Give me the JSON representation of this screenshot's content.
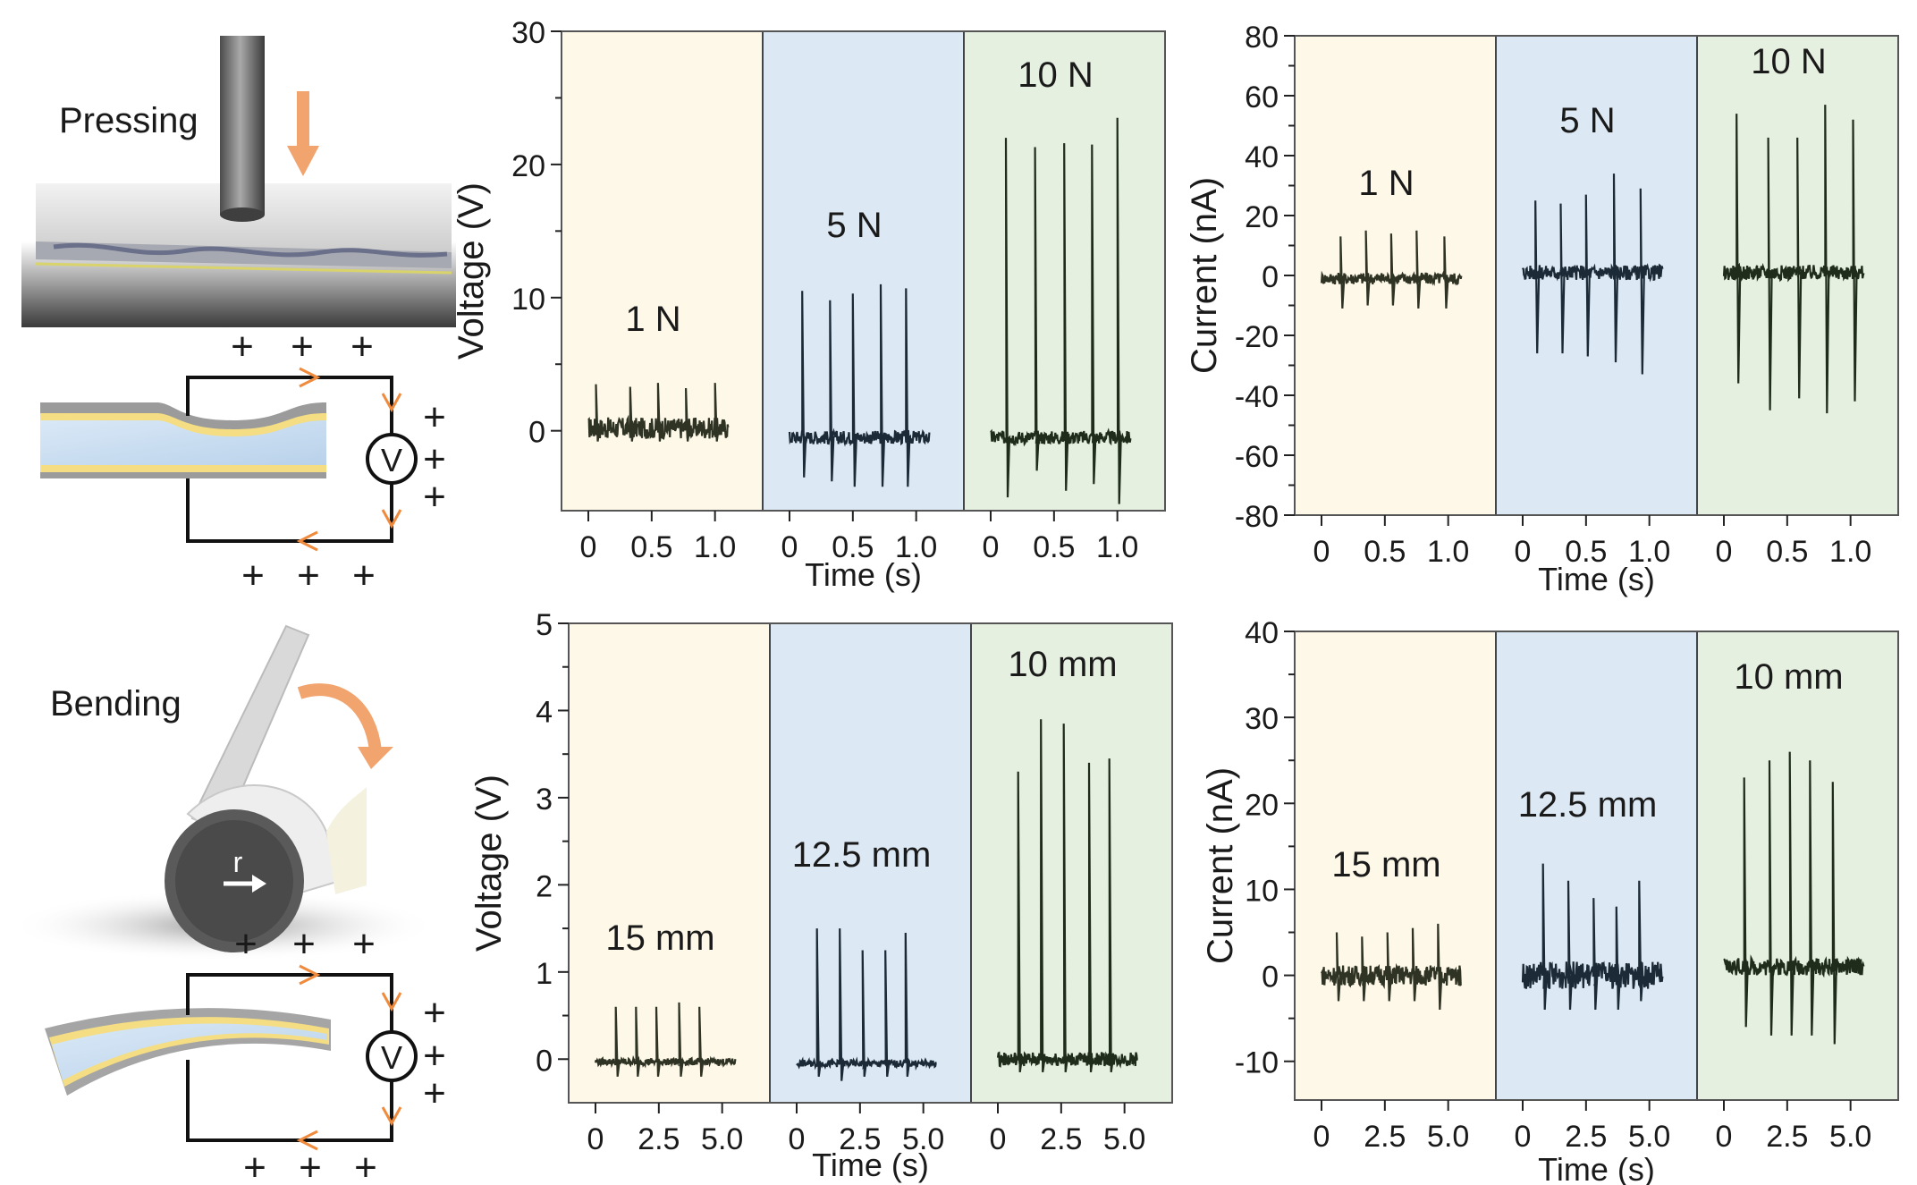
{
  "colors": {
    "panel_bg": [
      "#fdf8e8",
      "#dce8f3",
      "#e6f0e0"
    ],
    "trace": [
      "#2f3324",
      "#1b2a36",
      "#1f2c1c"
    ],
    "accent": "#f2a46f",
    "axis": "#222222"
  },
  "schematic": {
    "pressing_label": "Pressing",
    "bending_label": "Bending",
    "meter_label": "V",
    "radius_label": "r",
    "charge_symbol": "+"
  },
  "chart_data": [
    {
      "type": "line",
      "ylabel": "Voltage (V)",
      "xlabel": "Time (s)",
      "ylim": [
        -6,
        30
      ],
      "yticks": [
        0,
        10,
        20,
        30
      ],
      "xlim": [
        0,
        1.2
      ],
      "xticks": [
        0,
        0.5,
        1.0
      ],
      "xticklabels": [
        "0",
        "0.5",
        "1.0"
      ],
      "grid": false,
      "series": [
        {
          "name": "1 N",
          "baseline": 0.2,
          "noise": 0.8,
          "spikes": [
            [
              0.06,
              3.5,
              -0.8
            ],
            [
              0.33,
              3.3,
              -0.8
            ],
            [
              0.55,
              3.6,
              -0.8
            ],
            [
              0.77,
              3.2,
              -0.8
            ],
            [
              1.0,
              3.6,
              -0.8
            ]
          ]
        },
        {
          "name": "5 N",
          "baseline": -0.5,
          "noise": 0.5,
          "spikes": [
            [
              0.1,
              10.5,
              -3.5
            ],
            [
              0.32,
              9.8,
              -3.8
            ],
            [
              0.5,
              10.3,
              -4.2
            ],
            [
              0.72,
              11.0,
              -4.2
            ],
            [
              0.92,
              10.7,
              -4.2
            ]
          ]
        },
        {
          "name": "10 N",
          "baseline": -0.5,
          "noise": 0.5,
          "spikes": [
            [
              0.12,
              22.0,
              -5.0
            ],
            [
              0.35,
              21.3,
              -3.0
            ],
            [
              0.58,
              21.6,
              -4.5
            ],
            [
              0.8,
              21.5,
              -4.0
            ],
            [
              1.0,
              23.5,
              -5.5
            ]
          ]
        }
      ]
    },
    {
      "type": "line",
      "ylabel": "Current (nA)",
      "xlabel": "Time (s)",
      "ylim": [
        -80,
        80
      ],
      "yticks": [
        -80,
        -60,
        -40,
        -20,
        0,
        20,
        40,
        60,
        80
      ],
      "xlim": [
        0,
        1.2
      ],
      "xticks": [
        0,
        0.5,
        1.0
      ],
      "xticklabels": [
        "0",
        "0.5",
        "1.0"
      ],
      "grid": false,
      "series": [
        {
          "name": "1 N",
          "baseline": -1,
          "noise": 2,
          "spikes": [
            [
              0.15,
              13,
              -11
            ],
            [
              0.35,
              15,
              -10
            ],
            [
              0.55,
              14,
              -10
            ],
            [
              0.75,
              15,
              -11
            ],
            [
              0.97,
              13,
              -11
            ]
          ]
        },
        {
          "name": "5 N",
          "baseline": 1,
          "noise": 2.5,
          "spikes": [
            [
              0.1,
              25,
              -26
            ],
            [
              0.3,
              24,
              -26
            ],
            [
              0.5,
              27,
              -27
            ],
            [
              0.72,
              34,
              -29
            ],
            [
              0.93,
              29,
              -33
            ]
          ]
        },
        {
          "name": "10 N",
          "baseline": 1,
          "noise": 2.5,
          "spikes": [
            [
              0.1,
              54,
              -36
            ],
            [
              0.35,
              46,
              -45
            ],
            [
              0.58,
              46,
              -41
            ],
            [
              0.8,
              57,
              -46
            ],
            [
              1.02,
              52,
              -42
            ]
          ]
        }
      ]
    },
    {
      "type": "line",
      "ylabel": "Voltage (V)",
      "xlabel": "Time (s)",
      "ylim": [
        -0.5,
        5
      ],
      "yticks": [
        0,
        1,
        2,
        3,
        4,
        5
      ],
      "xlim": [
        0,
        6
      ],
      "xticks": [
        0,
        2.5,
        5
      ],
      "xticklabels": [
        "0",
        "2.5",
        "5.0"
      ],
      "grid": false,
      "series": [
        {
          "name": "15 mm",
          "baseline": -0.03,
          "noise": 0.04,
          "spikes": [
            [
              0.8,
              0.6,
              -0.2
            ],
            [
              1.6,
              0.6,
              -0.2
            ],
            [
              2.4,
              0.6,
              -0.2
            ],
            [
              3.3,
              0.65,
              -0.2
            ],
            [
              4.1,
              0.6,
              -0.2
            ]
          ]
        },
        {
          "name": "12.5 mm",
          "baseline": -0.05,
          "noise": 0.04,
          "spikes": [
            [
              0.8,
              1.5,
              -0.2
            ],
            [
              1.7,
              1.5,
              -0.25
            ],
            [
              2.6,
              1.25,
              -0.2
            ],
            [
              3.5,
              1.25,
              -0.2
            ],
            [
              4.3,
              1.45,
              -0.2
            ]
          ]
        },
        {
          "name": "10 mm",
          "baseline": 0.0,
          "noise": 0.08,
          "spikes": [
            [
              0.8,
              3.3,
              -0.15
            ],
            [
              1.7,
              3.9,
              -0.15
            ],
            [
              2.6,
              3.85,
              -0.15
            ],
            [
              3.6,
              3.4,
              -0.15
            ],
            [
              4.4,
              3.45,
              -0.15
            ]
          ]
        }
      ]
    },
    {
      "type": "line",
      "ylabel": "Current (nA)",
      "xlabel": "Time (s)",
      "ylim": [
        -14.5,
        40
      ],
      "yticks": [
        -10,
        0,
        10,
        20,
        30,
        40
      ],
      "xlim": [
        0,
        6
      ],
      "xticks": [
        0,
        2.5,
        5
      ],
      "xticklabels": [
        "0",
        "2.5",
        "5.0"
      ],
      "grid": false,
      "series": [
        {
          "name": "15 mm",
          "baseline": 0,
          "noise": 1.2,
          "spikes": [
            [
              0.6,
              5,
              -3
            ],
            [
              1.6,
              4.5,
              -3
            ],
            [
              2.6,
              5,
              -3
            ],
            [
              3.6,
              5.5,
              -3
            ],
            [
              4.6,
              6,
              -4
            ]
          ]
        },
        {
          "name": "12.5 mm",
          "baseline": 0,
          "noise": 1.6,
          "spikes": [
            [
              0.8,
              13,
              -4
            ],
            [
              1.8,
              11,
              -4
            ],
            [
              2.8,
              9,
              -4
            ],
            [
              3.7,
              8,
              -4
            ],
            [
              4.6,
              11,
              -3
            ]
          ]
        },
        {
          "name": "10 mm",
          "baseline": 1,
          "noise": 1.0,
          "spikes": [
            [
              0.8,
              23,
              -6
            ],
            [
              1.8,
              25,
              -7
            ],
            [
              2.6,
              26,
              -7
            ],
            [
              3.4,
              25,
              -7
            ],
            [
              4.3,
              22.5,
              -8
            ]
          ]
        }
      ]
    }
  ]
}
